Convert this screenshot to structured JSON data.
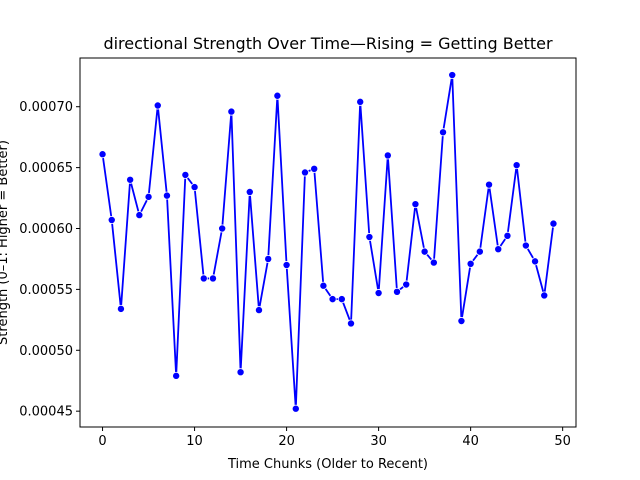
{
  "chart_data": {
    "type": "line",
    "title": "directional Strength Over Time—Rising = Getting Better",
    "xlabel": "Time Chunks (Older to Recent)",
    "ylabel": "Strength (0–1: Higher = Better)",
    "xlim": [
      -2.45,
      51.45
    ],
    "ylim": [
      0.000437,
      0.00074
    ],
    "x_ticks": [
      0,
      10,
      20,
      30,
      40,
      50
    ],
    "x_tick_labels": [
      "0",
      "10",
      "20",
      "30",
      "40",
      "50"
    ],
    "y_ticks": [
      0.00045,
      0.0005,
      0.00055,
      0.0006,
      0.00065,
      0.0007
    ],
    "y_tick_labels": [
      "0.00045",
      "0.00050",
      "0.00055",
      "0.00060",
      "0.00065",
      "0.00070"
    ],
    "grid": false,
    "legend": "none",
    "series": [
      {
        "color": "#0000ff",
        "marker": "circle",
        "x": [
          0,
          1,
          2,
          3,
          4,
          5,
          6,
          7,
          8,
          9,
          10,
          11,
          12,
          13,
          14,
          15,
          16,
          17,
          18,
          19,
          20,
          21,
          22,
          23,
          24,
          25,
          26,
          27,
          28,
          29,
          30,
          31,
          32,
          33,
          34,
          35,
          36,
          37,
          38,
          39,
          40,
          41,
          42,
          43,
          44,
          45,
          46,
          47,
          48,
          49
        ],
        "y": [
          0.000661,
          0.000607,
          0.000534,
          0.00064,
          0.000611,
          0.000626,
          0.000701,
          0.000627,
          0.000479,
          0.000644,
          0.000634,
          0.000559,
          0.000559,
          0.0006,
          0.000696,
          0.000482,
          0.00063,
          0.000533,
          0.000575,
          0.000709,
          0.00057,
          0.000452,
          0.000646,
          0.000649,
          0.000553,
          0.000542,
          0.000542,
          0.000522,
          0.000704,
          0.000593,
          0.000547,
          0.00066,
          0.000548,
          0.000554,
          0.00062,
          0.000581,
          0.000572,
          0.000679,
          0.000726,
          0.000524,
          0.000571,
          0.000581,
          0.000636,
          0.000583,
          0.000594,
          0.000652,
          0.000586,
          0.000573,
          0.000545,
          0.000604
        ]
      }
    ]
  }
}
